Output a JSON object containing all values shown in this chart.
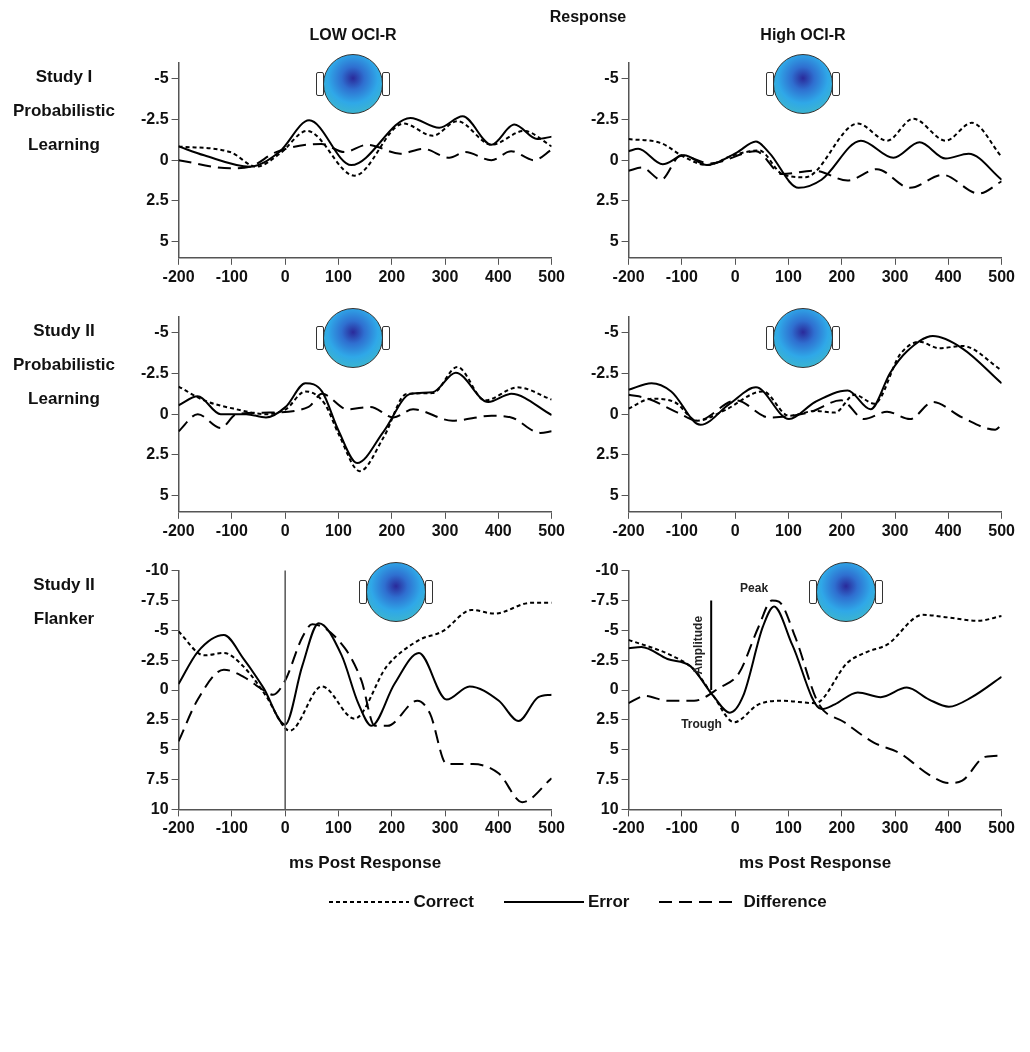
{
  "chart_data": [
    {
      "type": "line",
      "title": "LOW OCI-R",
      "ylabel": "Study I Probabilistic Learning",
      "annotations": [
        "Response"
      ],
      "legend": "bottom",
      "xlim": [
        -200,
        500
      ],
      "xticks": [
        -200,
        -100,
        0,
        100,
        200,
        300,
        400,
        500
      ],
      "ylim": [
        6,
        -6
      ],
      "yticks": [
        -5,
        -2.5,
        0,
        2.5,
        5
      ],
      "grid": false,
      "marker": "none",
      "series": [
        {
          "name": "Correct",
          "color": "#000000",
          "line_style": "dotted",
          "x": [
            -200,
            -103,
            -54,
            -10,
            41,
            130,
            222,
            277,
            323,
            387,
            448,
            500
          ],
          "values": [
            -0.85,
            -0.5,
            0.4,
            -0.4,
            -1.8,
            0.95,
            -2.25,
            -1.5,
            -2.4,
            -0.95,
            -1.8,
            -0.85
          ]
        },
        {
          "name": "Error",
          "color": "#000000",
          "line_style": "solid",
          "x": [
            -200,
            -152,
            -66,
            -11,
            45,
            124,
            235,
            289,
            333,
            387,
            430,
            473,
            500
          ],
          "values": [
            -0.85,
            -0.3,
            0.4,
            -0.5,
            -2.45,
            0.3,
            -2.6,
            -2.0,
            -2.7,
            -0.95,
            -2.2,
            -1.3,
            -1.45
          ]
        },
        {
          "name": "Difference",
          "color": "#000000",
          "line_style": "dashed",
          "x": [
            -200,
            -103,
            -66,
            -17,
            68,
            111,
            154,
            216,
            259,
            308,
            338,
            387,
            424,
            467,
            500
          ],
          "values": [
            0,
            0.5,
            0.4,
            -0.5,
            -1.0,
            -0.5,
            -0.95,
            -0.4,
            -0.7,
            -0.15,
            -0.5,
            0,
            -0.55,
            0,
            -0.65
          ]
        }
      ]
    },
    {
      "type": "line",
      "title": "High OCI-R",
      "xlim": [
        -200,
        500
      ],
      "xticks": [
        -200,
        -100,
        0,
        100,
        200,
        300,
        400,
        500
      ],
      "ylim": [
        6,
        -6
      ],
      "yticks": [
        -5,
        -2.5,
        0,
        2.5,
        5
      ],
      "grid": false,
      "marker": "none",
      "series": [
        {
          "name": "Correct",
          "color": "#000000",
          "line_style": "dotted",
          "x": [
            -200,
            -139,
            -96,
            -53,
            -4,
            45,
            88,
            131,
            230,
            285,
            334,
            395,
            444,
            500
          ],
          "values": [
            -1.3,
            -1.05,
            -0.2,
            0.3,
            -0.3,
            -0.6,
            0.85,
            1.05,
            -2.25,
            -1.2,
            -2.55,
            -1.2,
            -2.3,
            -0.2
          ]
        },
        {
          "name": "Error",
          "color": "#000000",
          "line_style": "solid",
          "x": [
            -200,
            -182,
            -136,
            -96,
            -53,
            2,
            39,
            64,
            119,
            162,
            236,
            297,
            346,
            395,
            438,
            500
          ],
          "values": [
            -0.55,
            -0.7,
            0.25,
            -0.3,
            0.3,
            -0.45,
            -1.15,
            -0.45,
            1.7,
            1.2,
            -1.2,
            -0.15,
            -1.1,
            -0.1,
            -0.4,
            1.2
          ]
        },
        {
          "name": "Difference",
          "color": "#000000",
          "line_style": "dashed",
          "x": [
            -200,
            -175,
            -139,
            -102,
            -47,
            39,
            88,
            150,
            211,
            266,
            328,
            389,
            457,
            500
          ],
          "values": [
            0.65,
            0.45,
            1.2,
            -0.3,
            0.2,
            -0.55,
            0.85,
            0.65,
            1.25,
            0.55,
            1.7,
            0.9,
            2.05,
            1.3
          ]
        }
      ]
    },
    {
      "type": "line",
      "ylabel": "Study II Probabilistic Learning",
      "xlim": [
        -200,
        500
      ],
      "xticks": [
        -200,
        -100,
        0,
        100,
        200,
        300,
        400,
        500
      ],
      "ylim": [
        6,
        -6
      ],
      "yticks": [
        -5,
        -2.5,
        0,
        2.5,
        5
      ],
      "grid": false,
      "marker": "none",
      "series": [
        {
          "name": "Correct",
          "color": "#000000",
          "line_style": "dotted",
          "x": [
            -200,
            -152,
            -91,
            -36,
            1,
            38,
            74,
            100,
            140,
            185,
            228,
            277,
            323,
            375,
            436,
            500
          ],
          "values": [
            -1.7,
            -0.85,
            -0.3,
            0,
            -0.3,
            -1.4,
            -0.65,
            1.2,
            3.5,
            1.4,
            -1.25,
            -1.3,
            -2.9,
            -0.85,
            -1.65,
            -0.9
          ]
        },
        {
          "name": "Error",
          "color": "#000000",
          "line_style": "solid",
          "x": [
            -200,
            -164,
            -121,
            -73,
            -36,
            1,
            38,
            69,
            100,
            135,
            185,
            235,
            277,
            320,
            381,
            424,
            500
          ],
          "values": [
            -0.55,
            -1.1,
            0,
            0,
            0.2,
            -0.45,
            -1.9,
            -1.4,
            1.0,
            3.0,
            1.05,
            -1.25,
            -1.35,
            -2.55,
            -0.75,
            -1.25,
            0.05
          ]
        },
        {
          "name": "Difference",
          "color": "#000000",
          "line_style": "dashed",
          "x": [
            -200,
            -164,
            -121,
            -91,
            -30,
            44,
            69,
            117,
            160,
            203,
            240,
            314,
            387,
            424,
            479,
            500
          ],
          "values": [
            1.05,
            0,
            0.85,
            0,
            -0.1,
            -0.45,
            -1.25,
            -0.3,
            -0.45,
            0.2,
            -0.3,
            0.4,
            0.1,
            0.2,
            1.15,
            1.05
          ]
        }
      ]
    },
    {
      "type": "line",
      "xlim": [
        -200,
        500
      ],
      "xticks": [
        -200,
        -100,
        0,
        100,
        200,
        300,
        400,
        500
      ],
      "ylim": [
        6,
        -6
      ],
      "yticks": [
        -5,
        -2.5,
        0,
        2.5,
        5
      ],
      "grid": false,
      "marker": "none",
      "series": [
        {
          "name": "Correct",
          "color": "#000000",
          "line_style": "dotted",
          "x": [
            -200,
            -157,
            -114,
            -71,
            -22,
            52,
            101,
            150,
            187,
            224,
            261,
            310,
            346,
            383,
            426,
            500
          ],
          "values": [
            -0.35,
            -0.95,
            -0.75,
            0.4,
            -0.2,
            -1.4,
            0.1,
            -0.2,
            -0.1,
            -1.2,
            -0.65,
            -3.7,
            -4.45,
            -4.05,
            -4.2,
            -2.7
          ]
        },
        {
          "name": "Error",
          "color": "#000000",
          "line_style": "solid",
          "x": [
            -200,
            -157,
            -120,
            -65,
            -10,
            39,
            101,
            150,
            211,
            254,
            291,
            322,
            371,
            426,
            500
          ],
          "values": [
            -1.5,
            -1.9,
            -1.4,
            0.65,
            -0.65,
            -1.65,
            0.3,
            -0.75,
            -1.45,
            -0.3,
            -2.55,
            -3.85,
            -4.8,
            -4.05,
            -1.9
          ]
        },
        {
          "name": "Difference",
          "color": "#000000",
          "line_style": "dashed",
          "x": [
            -200,
            -163,
            -108,
            -71,
            2,
            64,
            138,
            199,
            242,
            285,
            328,
            371,
            426,
            488,
            500
          ],
          "values": [
            -1.2,
            -0.95,
            -0.1,
            0.4,
            -0.85,
            0.2,
            -0.1,
            -0.85,
            0.3,
            -0.15,
            0.3,
            -0.75,
            0.2,
            0.95,
            0.65
          ]
        }
      ]
    },
    {
      "type": "line",
      "ylabel": "Study II Flanker",
      "xlabel": "ms Post Response",
      "xlim": [
        -200,
        500
      ],
      "xticks": [
        -200,
        -100,
        0,
        100,
        200,
        300,
        400,
        500
      ],
      "ylim": [
        10,
        -10
      ],
      "yticks": [
        -10,
        -7.5,
        -5,
        -2.5,
        0,
        2.5,
        5,
        7.5,
        10
      ],
      "grid": false,
      "marker": "none",
      "ref_lines": [
        {
          "axis": "x",
          "value": 0,
          "color": "#555555"
        }
      ],
      "series": [
        {
          "name": "Correct",
          "color": "#000000",
          "line_style": "dotted",
          "x": [
            -200,
            -152,
            -115,
            -79,
            -36,
            0,
            9,
            69,
            130,
            191,
            252,
            295,
            350,
            393,
            461,
            500
          ],
          "values": [
            -4.9,
            -2.9,
            -3.1,
            -2.0,
            0.5,
            3.2,
            3.4,
            -0.3,
            2.4,
            -2.0,
            -4.2,
            -4.9,
            -6.7,
            -6.4,
            -7.3,
            -7.3
          ]
        },
        {
          "name": "Error",
          "color": "#000000",
          "line_style": "solid",
          "x": [
            -200,
            -164,
            -115,
            -78,
            -41,
            0,
            32,
            63,
            106,
            137,
            162,
            205,
            251,
            303,
            346,
            401,
            438,
            475,
            500
          ],
          "values": [
            -0.5,
            -3.2,
            -4.6,
            -2.6,
            -0.2,
            2.9,
            -2.0,
            -5.6,
            -2.9,
            1.1,
            3.0,
            -0.5,
            -3.1,
            0.8,
            -0.3,
            0.9,
            2.6,
            0.6,
            0.4
          ]
        },
        {
          "name": "Difference",
          "color": "#000000",
          "line_style": "dashed",
          "x": [
            -200,
            -164,
            -115,
            -78,
            -41,
            -23,
            0,
            32,
            51,
            112,
            143,
            168,
            192,
            248,
            272,
            303,
            352,
            401,
            445,
            500
          ],
          "values": [
            4.3,
            0.8,
            -1.7,
            -1.1,
            0,
            0.4,
            -0.8,
            -4.4,
            -5.5,
            -3.5,
            -0.8,
            3.0,
            3.0,
            0.9,
            2.0,
            6.2,
            6.2,
            7.0,
            9.4,
            7.4
          ]
        }
      ]
    },
    {
      "type": "line",
      "xlabel": "ms Post Response",
      "xlim": [
        -200,
        500
      ],
      "xticks": [
        -200,
        -100,
        0,
        100,
        200,
        300,
        400,
        500
      ],
      "ylim": [
        10,
        -10
      ],
      "yticks": [
        -10,
        -7.5,
        -5,
        -2.5,
        0,
        2.5,
        5,
        7.5,
        10
      ],
      "grid": false,
      "marker": "none",
      "annotations": [
        {
          "text": "Peak",
          "x": 73,
          "y": -7.0
        },
        {
          "text": "Trough",
          "x": -10,
          "y": 1.9
        },
        {
          "text": "Amplitude",
          "x": -45,
          "y": -3.75
        }
      ],
      "series": [
        {
          "name": "Correct",
          "color": "#000000",
          "line_style": "dotted",
          "x": [
            -200,
            -120,
            -77,
            -41,
            -2,
            44,
            88,
            150,
            211,
            248,
            285,
            352,
            395,
            456,
            500
          ],
          "values": [
            -4.2,
            -2.9,
            -1.7,
            0.5,
            2.7,
            1.2,
            0.9,
            1.1,
            -2.3,
            -3.2,
            -3.8,
            -6.3,
            -6.1,
            -5.8,
            -6.2
          ]
        },
        {
          "name": "Error",
          "color": "#000000",
          "line_style": "solid",
          "x": [
            -200,
            -176,
            -127,
            -84,
            -41,
            -10,
            15,
            52,
            73,
            107,
            162,
            187,
            230,
            273,
            322,
            364,
            401,
            444,
            500
          ],
          "values": [
            -3.5,
            -3.6,
            -2.6,
            -2.0,
            0.5,
            1.9,
            0.5,
            -5.3,
            -7.0,
            -3.8,
            1.6,
            1.2,
            0.2,
            0.6,
            -0.2,
            0.8,
            1.4,
            0.6,
            -1.1
          ]
        },
        {
          "name": "Difference",
          "color": "#000000",
          "line_style": "dashed",
          "x": [
            -200,
            -169,
            -127,
            -77,
            -29,
            7,
            44,
            69,
            82,
            113,
            156,
            205,
            260,
            309,
            364,
            401,
            426,
            469,
            500
          ],
          "values": [
            1.1,
            0.5,
            0.9,
            0.9,
            -0.2,
            -1.4,
            -5.3,
            -7.5,
            -7.4,
            -4.4,
            1.1,
            2.7,
            4.4,
            5.3,
            7.1,
            7.8,
            7.6,
            5.6,
            5.5
          ]
        },
        {
          "type": "line",
          "color": "#000000",
          "line_style": "solid",
          "x": [
            -45,
            -45
          ],
          "values": [
            0,
            -7.5
          ]
        }
      ]
    }
  ]
}
